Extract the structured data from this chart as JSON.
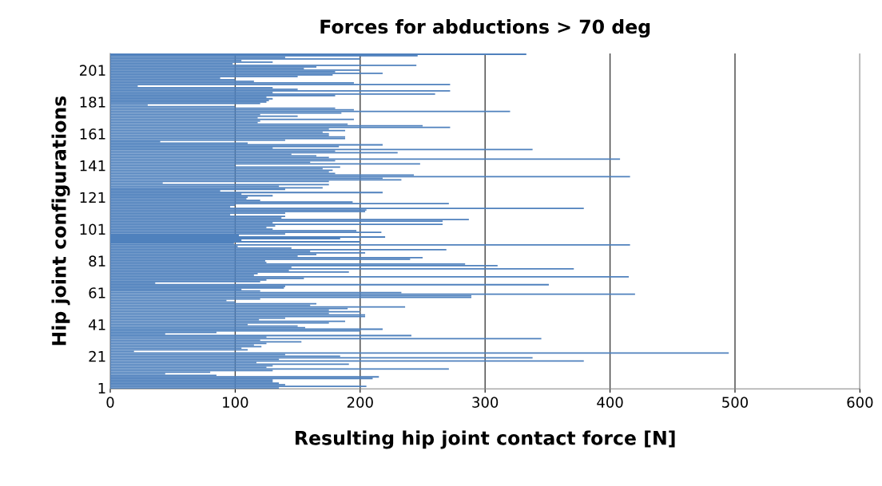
{
  "chart_data": {
    "type": "bar",
    "orientation": "horizontal",
    "title": "Forces for abductions > 70 deg",
    "xlabel": "Resulting hip joint contact force [N]",
    "ylabel": "Hip joint configurations",
    "categories": [
      null,
      null,
      null,
      null,
      null,
      null,
      null,
      null,
      null,
      null,
      "201",
      null,
      null,
      null,
      null,
      null,
      null,
      null,
      null,
      null,
      null,
      null,
      null,
      null,
      null,
      null,
      null,
      null,
      null,
      null,
      "181",
      null,
      null,
      null,
      null,
      null,
      null,
      null,
      null,
      null,
      null,
      null,
      null,
      null,
      null,
      null,
      null,
      null,
      null,
      null,
      "161",
      null,
      null,
      null,
      null,
      null,
      null,
      null,
      null,
      null,
      null,
      null,
      null,
      null,
      null,
      null,
      null,
      null,
      null,
      null,
      "141",
      null,
      null,
      null,
      null,
      null,
      null,
      null,
      null,
      null,
      null,
      null,
      null,
      null,
      null,
      null,
      null,
      null,
      null,
      null,
      "121",
      null,
      null,
      null,
      null,
      null,
      null,
      null,
      null,
      null,
      null,
      null,
      null,
      null,
      null,
      null,
      null,
      null,
      null,
      null,
      "101",
      null,
      null,
      null,
      null,
      null,
      null,
      null,
      null,
      null,
      null,
      null,
      null,
      null,
      null,
      null,
      null,
      null,
      null,
      null,
      "81",
      null,
      null,
      null,
      null,
      null,
      null,
      null,
      null,
      null,
      null,
      null,
      null,
      null,
      null,
      null,
      null,
      null,
      null,
      null,
      "61",
      null,
      null,
      null,
      null,
      null,
      null,
      null,
      null,
      null,
      null,
      null,
      null,
      null,
      null,
      null,
      null,
      null,
      null,
      null,
      "41",
      null,
      null,
      null,
      null,
      null,
      null,
      null,
      null,
      null,
      null,
      null,
      null,
      null,
      null,
      null,
      null,
      null,
      null,
      null,
      "21",
      null,
      null,
      null,
      null,
      null,
      null,
      null,
      null,
      null,
      null,
      null,
      null,
      null,
      null,
      null,
      null,
      null,
      null,
      null,
      "1"
    ],
    "values": [
      333,
      246,
      140,
      200,
      105,
      130,
      98,
      245,
      165,
      155,
      200,
      180,
      218,
      178,
      150,
      88,
      100,
      115,
      195,
      272,
      22,
      130,
      150,
      272,
      130,
      260,
      180,
      125,
      130,
      127,
      125,
      120,
      30,
      100,
      180,
      195,
      320,
      185,
      120,
      150,
      118,
      195,
      120,
      118,
      190,
      250,
      272,
      175,
      188,
      170,
      175,
      175,
      188,
      188,
      140,
      40,
      110,
      218,
      183,
      130,
      338,
      180,
      230,
      145,
      165,
      175,
      408,
      180,
      160,
      248,
      100,
      184,
      170,
      178,
      175,
      180,
      243,
      416,
      218,
      233,
      175,
      42,
      175,
      135,
      170,
      140,
      88,
      218,
      105,
      130,
      110,
      109,
      120,
      194,
      271,
      100,
      96,
      379,
      205,
      204,
      140,
      96,
      140,
      137,
      287,
      266,
      130,
      266,
      132,
      125,
      130,
      197,
      217,
      140,
      103,
      220,
      184,
      105,
      200,
      99,
      416,
      102,
      145,
      269,
      160,
      204,
      165,
      150,
      250,
      240,
      124,
      125,
      284,
      310,
      145,
      371,
      143,
      191,
      118,
      115,
      415,
      155,
      125,
      120,
      36,
      351,
      140,
      139,
      105,
      120,
      233,
      420,
      289,
      289,
      120,
      93,
      100,
      165,
      160,
      236,
      190,
      175,
      200,
      175,
      204,
      204,
      140,
      119,
      188,
      175,
      110,
      150,
      156,
      218,
      200,
      85,
      44,
      241,
      125,
      345,
      120,
      153,
      125,
      115,
      121,
      105,
      110,
      19,
      495,
      140,
      184,
      338,
      135,
      379,
      117,
      191,
      130,
      125,
      271,
      130,
      80,
      44,
      85,
      215,
      210,
      130,
      130,
      135,
      140,
      205,
      135
    ],
    "color": "#4f81bd",
    "xlim": [
      0,
      600
    ],
    "xticks": [
      0,
      100,
      200,
      300,
      400,
      500,
      600
    ],
    "grid": "x"
  }
}
